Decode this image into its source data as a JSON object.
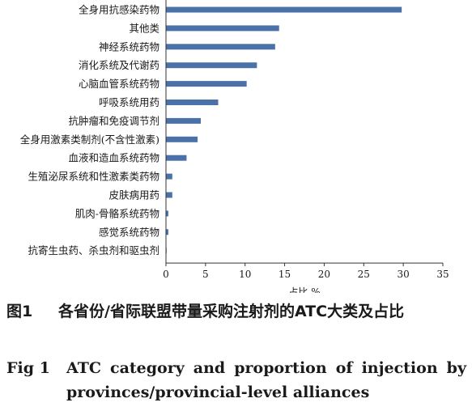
{
  "chart_data": {
    "type": "bar",
    "orientation": "horizontal",
    "categories": [
      "全身用抗感染药物",
      "其他类",
      "神经系统药物",
      "消化系统及代谢药",
      "心脑血管系统药物",
      "呼吸系统用药",
      "抗肿瘤和免疫调节剂",
      "全身用激素类制剂(不含性激素)",
      "血液和造血系统药物",
      "生殖泌尿系统和性激素类药物",
      "皮肤病用药",
      "肌肉-骨骼系统药物",
      "感觉系统药物",
      "抗寄生虫药、杀虫剂和驱虫剂"
    ],
    "values": [
      29.8,
      14.3,
      13.8,
      11.5,
      10.2,
      6.6,
      4.4,
      4.0,
      2.6,
      0.8,
      0.8,
      0.3,
      0.3,
      0.05
    ],
    "xlabel": "占比,%",
    "ylabel": "",
    "xlim": [
      0,
      35
    ],
    "xticks": [
      "0",
      "5",
      "10",
      "15",
      "20",
      "25",
      "30",
      "35"
    ],
    "bar_color": "#4a72a8",
    "grid": false
  },
  "caption": {
    "zh_number": "图1",
    "zh_title": "各省份/省际联盟带量采购注射剂的ATC大类及占比",
    "en_number": "Fig 1",
    "en_title_line1": "ATC category and proportion of injection by",
    "en_title_line2": "provinces/provincial-level alliances"
  }
}
